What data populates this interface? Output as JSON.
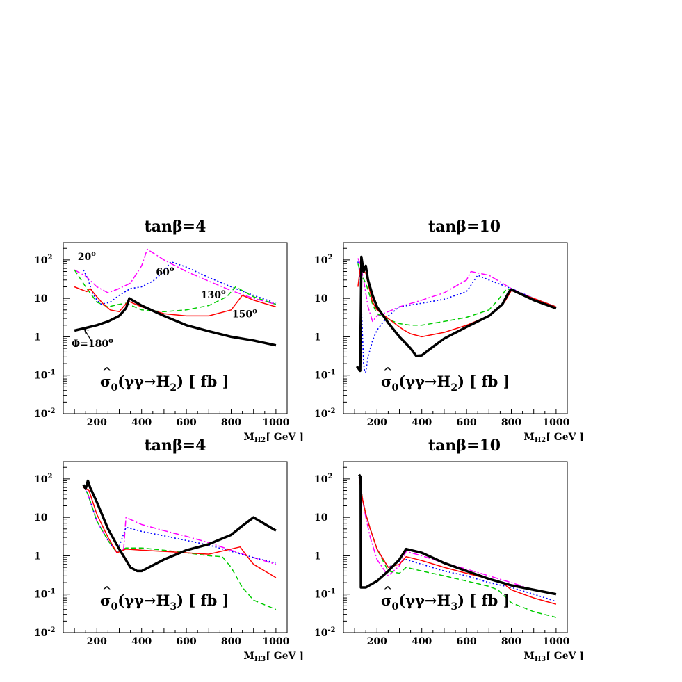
{
  "colors": {
    "phi20": "#ff00ff",
    "phi60": "#0000ff",
    "phi130": "#00cc00",
    "phi150": "#ff0000",
    "phi180": "#000000"
  },
  "chart_data": [
    {
      "type": "line",
      "title": "tanβ=4",
      "xlabel": "M_H2[ GeV ]",
      "xlabel_main": "M",
      "xlabel_sub": "H2",
      "xlabel_rest": "[ GeV ]",
      "xs_label": {
        "sigma": "σ",
        "sub": "0",
        "arg": "(γγ→H",
        "argsub": "2",
        "rest": ") [ fb ]"
      },
      "xlim": [
        50,
        1050
      ],
      "ylim_log10": [
        -2,
        2.45
      ],
      "yscale": "log",
      "xticks": [
        200,
        400,
        600,
        800,
        1000
      ],
      "yticks": [
        {
          "mant": "10",
          "exp": "-2",
          "v": -2
        },
        {
          "mant": "10",
          "exp": "-1",
          "v": -1
        },
        {
          "mant": "1",
          "exp": "",
          "v": 0
        },
        {
          "mant": "10",
          "exp": "",
          "v": 1
        },
        {
          "mant": "10",
          "exp": "2",
          "v": 2
        }
      ],
      "annotations": [
        {
          "text": "20",
          "deg": "o",
          "x": 155,
          "y": 100
        },
        {
          "text": "60",
          "deg": "o",
          "x": 505,
          "y": 40
        },
        {
          "text": "130",
          "deg": "o",
          "x": 720,
          "y": 10
        },
        {
          "text": "150",
          "deg": "o",
          "x": 860,
          "y": 3.2
        },
        {
          "text": "Φ=180",
          "deg": "o",
          "x": 180,
          "y": 0.55
        }
      ],
      "series": [
        {
          "name": "20",
          "color": "phi20",
          "style": "dashdot",
          "width": 1.5,
          "x": [
            100,
            150,
            200,
            250,
            300,
            350,
            400,
            425,
            500,
            600,
            700,
            800,
            900,
            1000
          ],
          "y": [
            55,
            38,
            20,
            14,
            18,
            25,
            70,
            190,
            100,
            50,
            28,
            16,
            10,
            7
          ]
        },
        {
          "name": "60",
          "color": "phi60",
          "style": "dotted",
          "width": 1.6,
          "x": [
            140,
            160,
            180,
            200,
            220,
            260,
            300,
            350,
            400,
            450,
            500,
            530,
            600,
            700,
            800,
            900,
            1000
          ],
          "y": [
            55,
            32,
            14,
            9,
            7,
            8,
            12,
            18,
            20,
            28,
            50,
            90,
            65,
            35,
            20,
            12,
            7.5
          ]
        },
        {
          "name": "130",
          "color": "phi130",
          "style": "dashed",
          "width": 1.5,
          "x": [
            100,
            150,
            200,
            250,
            300,
            330,
            400,
            500,
            600,
            700,
            780,
            820,
            900,
            1000
          ],
          "y": [
            55,
            20,
            8,
            6,
            7,
            7.5,
            5,
            4.5,
            5,
            6.5,
            11,
            20,
            11,
            7
          ]
        },
        {
          "name": "150",
          "color": "phi150",
          "style": "solid",
          "width": 1.5,
          "x": [
            100,
            130,
            155,
            170,
            200,
            230,
            260,
            300,
            340,
            400,
            500,
            600,
            700,
            800,
            850,
            900,
            1000
          ],
          "y": [
            20,
            17,
            15,
            18,
            11,
            7,
            5,
            4.5,
            8.5,
            6,
            4,
            3.5,
            3.5,
            5,
            12,
            9,
            6
          ]
        },
        {
          "name": "180",
          "color": "phi180",
          "style": "solid",
          "width": 3.5,
          "x": [
            100,
            150,
            200,
            250,
            300,
            330,
            345,
            400,
            500,
            600,
            700,
            800,
            900,
            1000
          ],
          "y": [
            1.45,
            1.7,
            2,
            2.5,
            3.5,
            5.5,
            10,
            6.5,
            3.5,
            2,
            1.4,
            1.0,
            0.8,
            0.6
          ]
        }
      ]
    },
    {
      "type": "line",
      "title": "tanβ=10",
      "xlabel": "M_H2[ GeV ]",
      "xlabel_main": "M",
      "xlabel_sub": "H2",
      "xlabel_rest": "[ GeV ]",
      "xs_label": {
        "sigma": "σ",
        "sub": "0",
        "arg": "(γγ→H",
        "argsub": "2",
        "rest": ") [ fb ]"
      },
      "xlim": [
        50,
        1050
      ],
      "ylim_log10": [
        -2,
        2.45
      ],
      "yscale": "log",
      "xticks": [
        200,
        400,
        600,
        800,
        1000
      ],
      "yticks": [
        {
          "mant": "10",
          "exp": "-2",
          "v": -2
        },
        {
          "mant": "10",
          "exp": "-1",
          "v": -1
        },
        {
          "mant": "1",
          "exp": "",
          "v": 0
        },
        {
          "mant": "10",
          "exp": "",
          "v": 1
        },
        {
          "mant": "10",
          "exp": "2",
          "v": 2
        }
      ],
      "annotations": [],
      "series": [
        {
          "name": "20",
          "color": "phi20",
          "style": "dashdot",
          "width": 1.5,
          "x": [
            115,
            125,
            140,
            160,
            180,
            200,
            250,
            300,
            400,
            500,
            600,
            620,
            700,
            800,
            900,
            1000
          ],
          "y": [
            110,
            80,
            30,
            6,
            2.5,
            3.5,
            4.5,
            6,
            9,
            14,
            30,
            50,
            40,
            18,
            10,
            6
          ]
        },
        {
          "name": "60",
          "color": "phi60",
          "style": "dotted",
          "width": 1.6,
          "x": [
            115,
            125,
            140,
            145,
            150,
            160,
            180,
            200,
            250,
            300,
            400,
            500,
            600,
            650,
            700,
            800,
            900,
            1000
          ],
          "y": [
            90,
            40,
            0.2,
            0.12,
            0.12,
            0.3,
            0.8,
            1.5,
            3.5,
            6,
            7.5,
            9.5,
            15,
            40,
            30,
            18,
            10,
            6
          ]
        },
        {
          "name": "130",
          "color": "phi130",
          "style": "dashed",
          "width": 1.5,
          "x": [
            115,
            130,
            150,
            180,
            200,
            250,
            300,
            350,
            400,
            500,
            600,
            700,
            740,
            780,
            800,
            900,
            1000
          ],
          "y": [
            80,
            40,
            25,
            7,
            4,
            2.8,
            2.2,
            2,
            2,
            2.5,
            3.2,
            5,
            9,
            18,
            16,
            10,
            6
          ]
        },
        {
          "name": "150",
          "color": "phi150",
          "style": "solid",
          "width": 1.5,
          "x": [
            115,
            125,
            150,
            160,
            180,
            200,
            250,
            300,
            320,
            350,
            400,
            500,
            600,
            700,
            770,
            800,
            900,
            1000
          ],
          "y": [
            20,
            60,
            45,
            25,
            8,
            5,
            3,
            1.8,
            1.5,
            1.2,
            1.0,
            1.3,
            2,
            3.5,
            8,
            16,
            10,
            6
          ]
        },
        {
          "name": "180",
          "color": "phi180",
          "style": "solid",
          "width": 3.5,
          "x": [
            110,
            125,
            130,
            140,
            150,
            160,
            180,
            200,
            250,
            300,
            350,
            375,
            400,
            450,
            500,
            600,
            700,
            760,
            790,
            800,
            900,
            1000
          ],
          "y": [
            0.17,
            0.13,
            120,
            50,
            70,
            30,
            12,
            6,
            2.3,
            1.0,
            0.5,
            0.32,
            0.33,
            0.55,
            0.9,
            1.8,
            3.5,
            7,
            15,
            17,
            9,
            5.5
          ]
        }
      ]
    },
    {
      "type": "line",
      "title": "tanβ=4",
      "xlabel": "M_H3[ GeV ]",
      "xlabel_main": "M",
      "xlabel_sub": "H3",
      "xlabel_rest": "[ GeV ]",
      "xs_label": {
        "sigma": "σ",
        "sub": "0",
        "arg": "(γγ→H",
        "argsub": "3",
        "rest": ") [ fb ]"
      },
      "xlim": [
        50,
        1050
      ],
      "ylim_log10": [
        -2,
        2.45
      ],
      "yscale": "log",
      "xticks": [
        200,
        400,
        600,
        800,
        1000
      ],
      "yticks": [
        {
          "mant": "10",
          "exp": "-2",
          "v": -2
        },
        {
          "mant": "10",
          "exp": "-1",
          "v": -1
        },
        {
          "mant": "1",
          "exp": "",
          "v": 0
        },
        {
          "mant": "10",
          "exp": "",
          "v": 1
        },
        {
          "mant": "10",
          "exp": "2",
          "v": 2
        }
      ],
      "annotations": [],
      "series": [
        {
          "name": "20",
          "color": "phi20",
          "style": "dashdot",
          "width": 1.5,
          "x": [
            140,
            160,
            200,
            250,
            290,
            320,
            330,
            400,
            500,
            600,
            700,
            800,
            900,
            1000
          ],
          "y": [
            70,
            40,
            8,
            2.5,
            1.2,
            1.5,
            10,
            6.5,
            4.5,
            3.2,
            2.2,
            1.4,
            0.9,
            0.6
          ]
        },
        {
          "name": "60",
          "color": "phi60",
          "style": "dotted",
          "width": 1.6,
          "x": [
            140,
            160,
            200,
            250,
            290,
            330,
            400,
            500,
            600,
            700,
            800,
            900,
            1000
          ],
          "y": [
            70,
            40,
            8,
            2.5,
            1.2,
            5.5,
            4.3,
            3.3,
            2.5,
            1.9,
            1.3,
            0.9,
            0.65
          ]
        },
        {
          "name": "130",
          "color": "phi130",
          "style": "dashed",
          "width": 1.5,
          "x": [
            140,
            160,
            200,
            250,
            290,
            330,
            400,
            500,
            600,
            700,
            760,
            800,
            850,
            900,
            1000
          ],
          "y": [
            70,
            40,
            8,
            2.5,
            1.2,
            1.6,
            1.6,
            1.4,
            1.2,
            1,
            0.95,
            0.5,
            0.15,
            0.07,
            0.04
          ]
        },
        {
          "name": "150",
          "color": "phi150",
          "style": "solid",
          "width": 1.5,
          "x": [
            140,
            165,
            200,
            250,
            290,
            330,
            400,
            500,
            600,
            700,
            800,
            840,
            870,
            900,
            1000
          ],
          "y": [
            60,
            50,
            12,
            3,
            1.2,
            1.5,
            1.4,
            1.3,
            1.2,
            1.1,
            1.5,
            1.7,
            1.0,
            0.6,
            0.27
          ]
        },
        {
          "name": "180",
          "color": "phi180",
          "style": "solid",
          "width": 3.5,
          "x": [
            140,
            150,
            160,
            170,
            200,
            250,
            300,
            350,
            380,
            400,
            500,
            600,
            700,
            800,
            850,
            900,
            1000
          ],
          "y": [
            70,
            55,
            90,
            60,
            25,
            5,
            1.5,
            0.5,
            0.4,
            0.4,
            0.8,
            1.4,
            2,
            3.5,
            6,
            10,
            4.5
          ]
        }
      ]
    },
    {
      "type": "line",
      "title": "tanβ=10",
      "xlabel": "M_H3[ GeV ]",
      "xlabel_main": "M",
      "xlabel_sub": "H3",
      "xlabel_rest": "[ GeV ]",
      "xs_label": {
        "sigma": "σ",
        "sub": "0",
        "arg": "(γγ→H",
        "argsub": "3",
        "rest": ") [ fb ]"
      },
      "xlim": [
        50,
        1050
      ],
      "ylim_log10": [
        -2,
        2.45
      ],
      "yscale": "log",
      "xticks": [
        200,
        400,
        600,
        800,
        1000
      ],
      "yticks": [
        {
          "mant": "10",
          "exp": "-2",
          "v": -2
        },
        {
          "mant": "10",
          "exp": "-1",
          "v": -1
        },
        {
          "mant": "1",
          "exp": "",
          "v": 0
        },
        {
          "mant": "10",
          "exp": "",
          "v": 1
        },
        {
          "mant": "10",
          "exp": "2",
          "v": 2
        }
      ],
      "annotations": [],
      "series": [
        {
          "name": "20",
          "color": "phi20",
          "style": "dashdot",
          "width": 1.5,
          "x": [
            120,
            135,
            150,
            170,
            200,
            250,
            300,
            330,
            400,
            500,
            600,
            700,
            800,
            900,
            1000
          ],
          "y": [
            110,
            30,
            10,
            3,
            0.8,
            0.3,
            0.55,
            1.3,
            1,
            0.65,
            0.45,
            0.3,
            0.2,
            0.13,
            0.1
          ]
        },
        {
          "name": "60",
          "color": "phi60",
          "style": "dotted",
          "width": 1.6,
          "x": [
            120,
            135,
            150,
            170,
            200,
            250,
            300,
            330,
            400,
            500,
            600,
            700,
            800,
            900,
            1000
          ],
          "y": [
            110,
            30,
            12,
            5,
            1.5,
            0.5,
            0.7,
            0.8,
            0.6,
            0.4,
            0.3,
            0.2,
            0.15,
            0.1,
            0.065
          ]
        },
        {
          "name": "130",
          "color": "phi130",
          "style": "dashed",
          "width": 1.5,
          "x": [
            120,
            135,
            150,
            170,
            200,
            250,
            300,
            330,
            400,
            500,
            600,
            700,
            740,
            800,
            900,
            1000
          ],
          "y": [
            110,
            30,
            12,
            5,
            1.5,
            0.4,
            0.35,
            0.5,
            0.4,
            0.3,
            0.22,
            0.16,
            0.13,
            0.06,
            0.035,
            0.025
          ]
        },
        {
          "name": "150",
          "color": "phi150",
          "style": "solid",
          "width": 1.5,
          "x": [
            120,
            135,
            150,
            170,
            200,
            250,
            300,
            330,
            400,
            500,
            600,
            700,
            760,
            800,
            900,
            1000
          ],
          "y": [
            110,
            30,
            12,
            5,
            1.5,
            0.5,
            0.6,
            0.95,
            0.75,
            0.5,
            0.35,
            0.25,
            0.2,
            0.13,
            0.08,
            0.055
          ]
        },
        {
          "name": "180",
          "color": "phi180",
          "style": "solid",
          "width": 3.5,
          "x": [
            120,
            127,
            128,
            150,
            200,
            250,
            300,
            330,
            400,
            500,
            600,
            700,
            800,
            900,
            1000
          ],
          "y": [
            130,
            110,
            0.15,
            0.15,
            0.22,
            0.4,
            0.8,
            1.5,
            1.2,
            0.65,
            0.4,
            0.25,
            0.17,
            0.13,
            0.1
          ]
        }
      ]
    }
  ]
}
